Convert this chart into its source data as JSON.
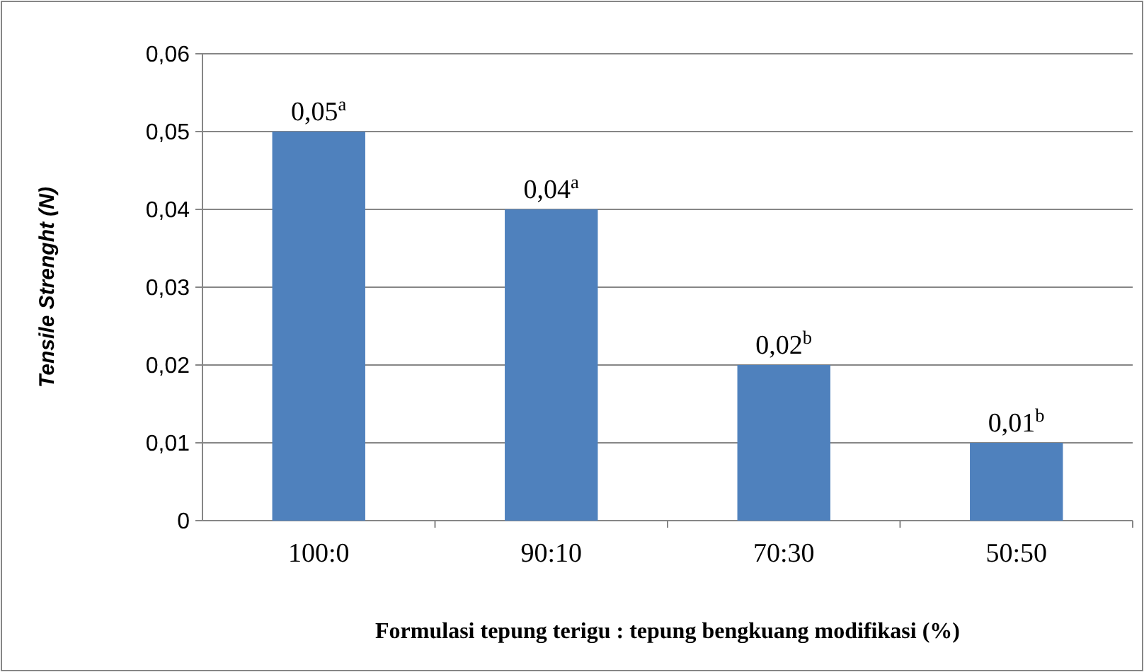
{
  "chart_data": {
    "type": "bar",
    "xlabel": "Formulasi tepung terigu : tepung bengkuang modifikasi (%)",
    "ylabel": "Tensile Strenght (N)",
    "categories": [
      "100:0",
      "90:10",
      "70:30",
      "50:50"
    ],
    "values": [
      0.05,
      0.04,
      0.02,
      0.01
    ],
    "color": "#4f81bd",
    "value_labels": [
      "0,05$^{a}$",
      "0,04$^{a}$",
      "0,02$^{b}$",
      "0,01$^{b}$"
    ],
    "ylim": [
      0,
      0.06
    ],
    "yticks": [
      {
        "value": 0,
        "label": "0"
      },
      {
        "value": 0.01,
        "label": "0,01"
      },
      {
        "value": 0.02,
        "label": "0,02"
      },
      {
        "value": 0.03,
        "label": "0,03"
      },
      {
        "value": 0.04,
        "label": "0,04"
      },
      {
        "value": 0.05,
        "label": "0,05"
      },
      {
        "value": 0.06,
        "label": "0,06"
      }
    ],
    "grid": "y"
  }
}
